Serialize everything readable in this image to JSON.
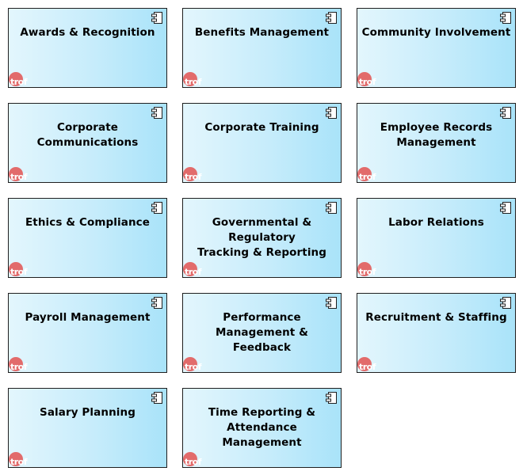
{
  "colors": {
    "box_border": "#1f1f1f",
    "box_fill_left": "#e3f6fd",
    "box_fill_right": "#a9e3f9",
    "logo_red": "#e26b6b"
  },
  "icons": {
    "component": "component-icon",
    "logo": "trof-logo-icon"
  },
  "logo_text": "trof",
  "components": [
    {
      "label": "Awards & Recognition"
    },
    {
      "label": "Benefits Management"
    },
    {
      "label": "Community Involvement"
    },
    {
      "label": "Corporate Communications"
    },
    {
      "label": "Corporate Training"
    },
    {
      "label": "Employee Records\nManagement"
    },
    {
      "label": "Ethics & Compliance"
    },
    {
      "label": "Governmental & Regulatory\nTracking & Reporting"
    },
    {
      "label": "Labor Relations"
    },
    {
      "label": "Payroll Management"
    },
    {
      "label": "Performance Management &\nFeedback"
    },
    {
      "label": "Recruitment & Staffing"
    },
    {
      "label": "Salary Planning"
    },
    {
      "label": "Time Reporting &\nAttendance Management"
    }
  ]
}
